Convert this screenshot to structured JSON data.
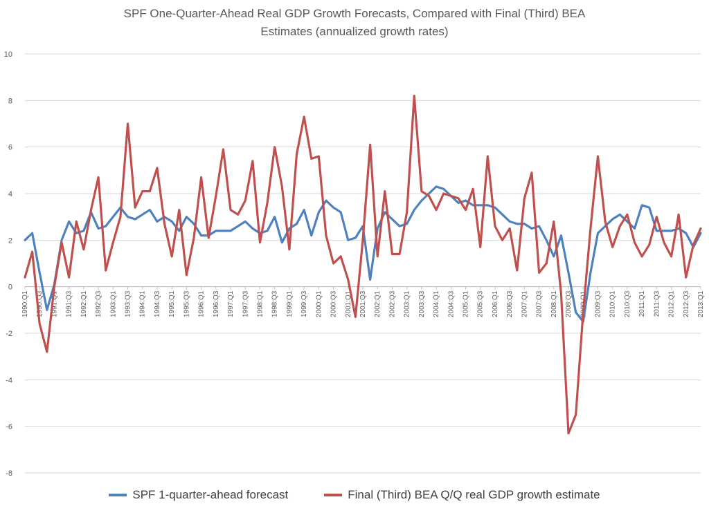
{
  "chart_data": {
    "type": "line",
    "title_line1": "SPF One-Quarter-Ahead Real GDP Growth Forecasts, Compared with Final (Third) BEA",
    "title_line2": "Estimates (annualized growth rates)",
    "ylim": [
      -8,
      10
    ],
    "yticks": [
      "-8",
      "-6",
      "-4",
      "-2",
      "0",
      "2",
      "4",
      "6",
      "8",
      "10"
    ],
    "x_labels": [
      "1990:Q1",
      "1990:Q3",
      "1991:Q1",
      "1991:Q3",
      "1992:Q1",
      "1992:Q3",
      "1993:Q1",
      "1993:Q3",
      "1994:Q1",
      "1994:Q3",
      "1995:Q1",
      "1995:Q3",
      "1996:Q1",
      "1996:Q3",
      "1997:Q1",
      "1997:Q3",
      "1998:Q1",
      "1998:Q3",
      "1999:Q1",
      "1999:Q3",
      "2000:Q1",
      "2000:Q3",
      "2001:Q1",
      "2001:Q3",
      "2002:Q1",
      "2002:Q3",
      "2003:Q1",
      "2003:Q3",
      "2004:Q1",
      "2004:Q3",
      "2005:Q1",
      "2005:Q3",
      "2006:Q1",
      "2006:Q3",
      "2007:Q1",
      "2007:Q3",
      "2008:Q1",
      "2008:Q3",
      "2009:Q1",
      "2009:Q3",
      "2010:Q1",
      "2010:Q3",
      "2011:Q1",
      "2011:Q3",
      "2012:Q1",
      "2012:Q3",
      "2013:Q1"
    ],
    "grid": "horizontal",
    "legend_placement": "bottom",
    "series": [
      {
        "name": "SPF 1-quarter-ahead forecast",
        "color": "#4f81bd",
        "values": [
          2.0,
          2.3,
          0.6,
          -1.0,
          0.1,
          2.0,
          2.8,
          2.3,
          2.4,
          3.2,
          2.5,
          2.6,
          3.0,
          3.4,
          3.0,
          2.9,
          3.1,
          3.3,
          2.8,
          3.0,
          2.8,
          2.4,
          3.0,
          2.7,
          2.2,
          2.2,
          2.4,
          2.4,
          2.4,
          2.6,
          2.8,
          2.5,
          2.3,
          2.4,
          3.0,
          1.9,
          2.5,
          2.7,
          3.3,
          2.2,
          3.2,
          3.7,
          3.4,
          3.2,
          2.0,
          2.1,
          2.6,
          0.3,
          2.5,
          3.2,
          2.9,
          2.6,
          2.7,
          3.3,
          3.7,
          4.0,
          4.3,
          4.2,
          3.9,
          3.6,
          3.7,
          3.5,
          3.5,
          3.5,
          3.4,
          3.1,
          2.8,
          2.7,
          2.7,
          2.5,
          2.6,
          2.0,
          1.3,
          2.2,
          0.6,
          -1.1,
          -1.5,
          0.6,
          2.3,
          2.6,
          2.9,
          3.1,
          2.8,
          2.5,
          3.5,
          3.4,
          2.4,
          2.4,
          2.4,
          2.5,
          2.3,
          1.7,
          2.3
        ]
      },
      {
        "name": "Final (Third) BEA Q/Q real GDP growth estimate",
        "color": "#c0504d",
        "values": [
          0.4,
          1.5,
          -1.6,
          -2.8,
          0.0,
          1.9,
          0.4,
          2.8,
          1.6,
          3.3,
          4.7,
          0.7,
          1.9,
          3.0,
          7.0,
          3.4,
          4.1,
          4.1,
          5.1,
          2.7,
          1.3,
          3.3,
          0.5,
          2.1,
          4.7,
          2.1,
          3.9,
          5.9,
          3.3,
          3.1,
          3.7,
          5.4,
          1.9,
          3.6,
          6.0,
          4.3,
          1.6,
          5.7,
          7.3,
          5.5,
          5.6,
          2.2,
          1.0,
          1.3,
          0.3,
          -1.3,
          2.0,
          6.1,
          1.3,
          4.1,
          1.4,
          1.4,
          3.2,
          8.2,
          4.1,
          3.9,
          3.3,
          4.0,
          3.9,
          3.8,
          3.3,
          4.2,
          1.7,
          5.6,
          2.6,
          2.0,
          2.5,
          0.7,
          3.8,
          4.9,
          0.6,
          1.0,
          2.8,
          -0.3,
          -6.3,
          -5.5,
          -1.1,
          2.5,
          5.6,
          2.8,
          1.7,
          2.6,
          3.1,
          1.9,
          1.3,
          1.8,
          3.0,
          1.9,
          1.3,
          3.1,
          0.4,
          1.8,
          2.5
        ]
      }
    ]
  }
}
